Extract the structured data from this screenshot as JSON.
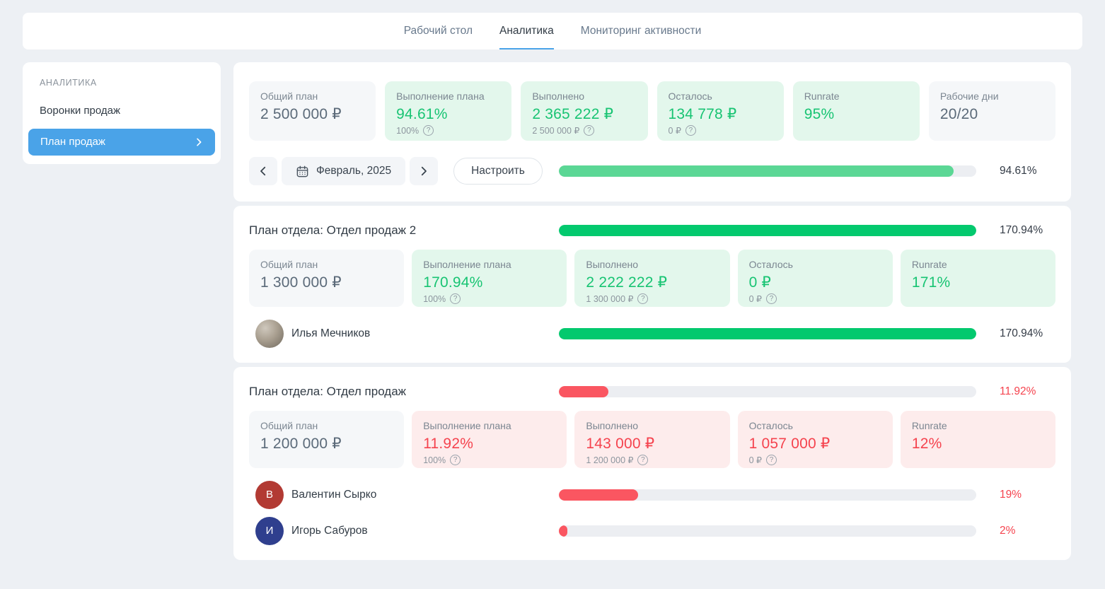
{
  "theme": {
    "accent_blue": "#4aa3e8",
    "green_text": "#18c473",
    "red_text": "#f5434e",
    "bar_track": "#eceef2"
  },
  "icons": {
    "prev": "chevron-left",
    "next": "chevron-right",
    "period": "calendar",
    "help": "circled-question",
    "sidebar_active": "chevron-right"
  },
  "topnav": {
    "tabs": [
      {
        "name": "desktop",
        "label": "Рабочий стол",
        "active": false
      },
      {
        "name": "analytics",
        "label": "Аналитика",
        "active": true
      },
      {
        "name": "activity-monitoring",
        "label": "Мониторинг активности",
        "active": false
      }
    ]
  },
  "sidebar": {
    "section_title": "АНАЛИТИКА",
    "items": [
      {
        "name": "sales-funnels",
        "label": "Воронки продаж",
        "active": false
      },
      {
        "name": "sales-plan",
        "label": "План продаж",
        "active": true
      }
    ]
  },
  "summary": {
    "tiles": [
      {
        "name": "total-plan",
        "label": "Общий план",
        "value": "2 500 000 ₽",
        "tone": "neutral"
      },
      {
        "name": "plan-completion",
        "label": "Выполнение плана",
        "value": "94.61%",
        "sub": "100%",
        "tone": "green"
      },
      {
        "name": "completed",
        "label": "Выполнено",
        "value": "2 365 222 ₽",
        "sub": "2 500 000 ₽",
        "tone": "green"
      },
      {
        "name": "remaining",
        "label": "Осталось",
        "value": "134 778 ₽",
        "sub": "0 ₽",
        "tone": "green"
      },
      {
        "name": "runrate",
        "label": "Runrate",
        "value": "95%",
        "tone": "green"
      },
      {
        "name": "working-days",
        "label": "Рабочие дни",
        "value": "20/20",
        "tone": "neutral"
      }
    ],
    "period": "Февраль, 2025",
    "configure_label": "Настроить",
    "progress": {
      "percent": 94.61,
      "label": "94.61%",
      "bar_color": "#5bd795",
      "label_tone": "dark"
    }
  },
  "departments": [
    {
      "name": "sales-dept-2",
      "title": "План отдела: Отдел продаж 2",
      "progress": {
        "percent": 100,
        "label": "170.94%",
        "bar_color": "#03c96e",
        "label_tone": "dark"
      },
      "tiles": [
        {
          "name": "total-plan",
          "label": "Общий план",
          "value": "1 300 000 ₽",
          "tone": "neutral"
        },
        {
          "name": "plan-completion",
          "label": "Выполнение плана",
          "value": "170.94%",
          "sub": "100%",
          "tone": "green"
        },
        {
          "name": "completed",
          "label": "Выполнено",
          "value": "2 222 222 ₽",
          "sub": "1 300 000 ₽",
          "tone": "green"
        },
        {
          "name": "remaining",
          "label": "Осталось",
          "value": "0 ₽",
          "sub": "0 ₽",
          "tone": "green"
        },
        {
          "name": "runrate",
          "label": "Runrate",
          "value": "171%",
          "tone": "green"
        }
      ],
      "members": [
        {
          "name": "ilya-mechnikov",
          "display_name": "Илья Мечников",
          "avatar": {
            "type": "photo"
          },
          "progress": {
            "percent": 100,
            "label": "170.94%",
            "bar_color": "#03c96e",
            "label_tone": "dark"
          }
        }
      ]
    },
    {
      "name": "sales-dept",
      "title": "План отдела: Отдел продаж",
      "progress": {
        "percent": 11.92,
        "label": "11.92%",
        "bar_color": "#fa5661",
        "label_tone": "red"
      },
      "tiles": [
        {
          "name": "total-plan",
          "label": "Общий план",
          "value": "1 200 000 ₽",
          "tone": "neutral"
        },
        {
          "name": "plan-completion",
          "label": "Выполнение плана",
          "value": "11.92%",
          "sub": "100%",
          "tone": "red"
        },
        {
          "name": "completed",
          "label": "Выполнено",
          "value": "143 000 ₽",
          "sub": "1 200 000 ₽",
          "tone": "red"
        },
        {
          "name": "remaining",
          "label": "Осталось",
          "value": "1 057 000 ₽",
          "sub": "0 ₽",
          "tone": "red"
        },
        {
          "name": "runrate",
          "label": "Runrate",
          "value": "12%",
          "tone": "red"
        }
      ],
      "members": [
        {
          "name": "valentin-syrko",
          "display_name": "Валентин Сырко",
          "avatar": {
            "type": "initial",
            "text": "В",
            "color": "#b23a33"
          },
          "progress": {
            "percent": 19,
            "label": "19%",
            "bar_color": "#fa5661",
            "label_tone": "red"
          }
        },
        {
          "name": "igor-saburov",
          "display_name": "Игорь Сабуров",
          "avatar": {
            "type": "initial",
            "text": "И",
            "color": "#2f3f8e"
          },
          "progress": {
            "percent": 2,
            "label": "2%",
            "bar_color": "#fa5661",
            "label_tone": "red"
          }
        }
      ]
    }
  ]
}
